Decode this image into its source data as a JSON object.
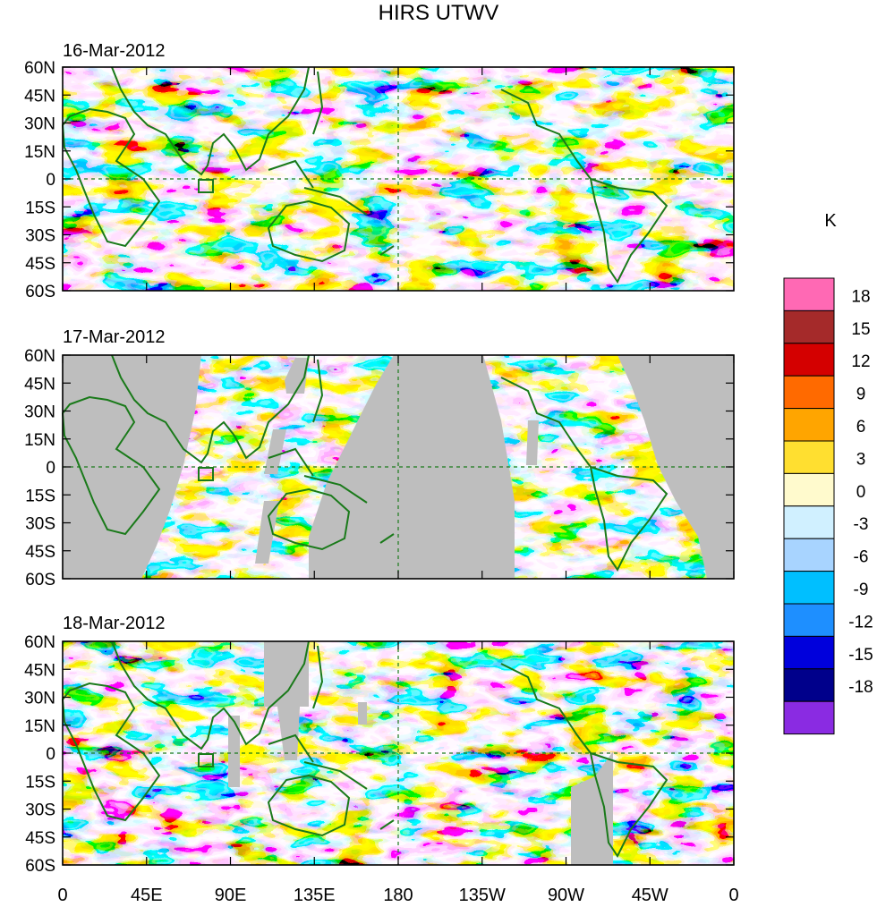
{
  "title": "HIRS UTWV",
  "panels": [
    {
      "date": "16-Mar-2012",
      "missing": false
    },
    {
      "date": "17-Mar-2012",
      "missing": true
    },
    {
      "date": "18-Mar-2012",
      "missing": true
    }
  ],
  "lat_labels": [
    "60N",
    "45N",
    "30N",
    "15N",
    "0",
    "15S",
    "30S",
    "45S",
    "60S"
  ],
  "lon_labels": [
    "0",
    "45E",
    "90E",
    "135E",
    "180",
    "135W",
    "90W",
    "45W",
    "0"
  ],
  "colorbar": {
    "unit": "K",
    "labels": [
      "18",
      "15",
      "12",
      "9",
      "6",
      "3",
      "0",
      "-3",
      "-6",
      "-9",
      "-12",
      "-15",
      "-18"
    ],
    "colors": [
      "#ff69b4",
      "#a52a2a",
      "#d40000",
      "#ff6a00",
      "#ffa500",
      "#ffdf30",
      "#fffacd",
      "#d0f0ff",
      "#a8d4ff",
      "#00bfff",
      "#1e8fff",
      "#0000dc",
      "#00008b",
      "#8a2be2"
    ]
  },
  "colors": {
    "coast": "#1a7a1a",
    "missing": "#bebebe"
  }
}
